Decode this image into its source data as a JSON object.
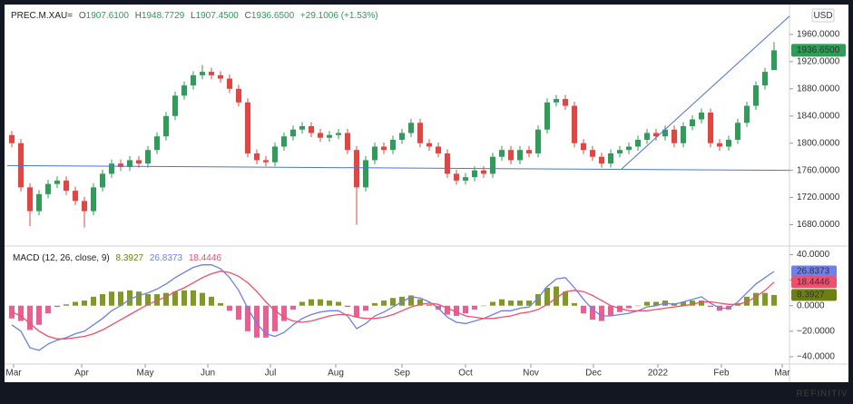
{
  "chart_data": [
    {
      "type": "candlestick",
      "symbol": "PREC.M.XAU=",
      "ohlc_legend": [
        {
          "key": "O",
          "text": "1907.6100"
        },
        {
          "key": "H",
          "text": "1948.7729"
        },
        {
          "key": "L",
          "text": "1907.4500"
        },
        {
          "key": "C",
          "text": "1936.6500"
        }
      ],
      "change": "+29.1006 (+1.53%)",
      "currency": "USD",
      "open": [
        1812,
        1800,
        1735,
        1700,
        1725,
        1740,
        1745,
        1730,
        1715,
        1700,
        1735,
        1755,
        1770,
        1765,
        1775,
        1770,
        1790,
        1810,
        1840,
        1870,
        1885,
        1900,
        1905,
        1900,
        1895,
        1880,
        1860,
        1785,
        1775,
        1772,
        1795,
        1810,
        1820,
        1825,
        1815,
        1808,
        1812,
        1815,
        1790,
        1735,
        1775,
        1795,
        1790,
        1805,
        1815,
        1830,
        1800,
        1795,
        1785,
        1755,
        1745,
        1750,
        1760,
        1755,
        1780,
        1790,
        1775,
        1790,
        1785,
        1820,
        1860,
        1865,
        1855,
        1800,
        1790,
        1780,
        1770,
        1785,
        1790,
        1795,
        1805,
        1815,
        1810,
        1820,
        1800,
        1825,
        1835,
        1845,
        1800,
        1795,
        1805,
        1830,
        1855,
        1885,
        1907.61
      ],
      "high": [
        1818,
        1806,
        1741,
        1731,
        1746,
        1751,
        1751,
        1736,
        1721,
        1741,
        1761,
        1776,
        1776,
        1781,
        1781,
        1796,
        1816,
        1846,
        1876,
        1891,
        1906,
        1915,
        1911,
        1906,
        1901,
        1886,
        1866,
        1791,
        1781,
        1801,
        1816,
        1826,
        1831,
        1831,
        1821,
        1818,
        1821,
        1821,
        1796,
        1781,
        1801,
        1801,
        1811,
        1821,
        1836,
        1836,
        1806,
        1801,
        1791,
        1761,
        1756,
        1766,
        1766,
        1786,
        1796,
        1796,
        1796,
        1796,
        1826,
        1866,
        1871,
        1871,
        1861,
        1806,
        1796,
        1786,
        1791,
        1796,
        1801,
        1811,
        1821,
        1821,
        1826,
        1826,
        1831,
        1841,
        1851,
        1851,
        1806,
        1811,
        1836,
        1861,
        1891,
        1911,
        1948.7729
      ],
      "low": [
        1794,
        1729,
        1678,
        1694,
        1719,
        1734,
        1724,
        1709,
        1676,
        1694,
        1729,
        1749,
        1759,
        1759,
        1764,
        1764,
        1784,
        1804,
        1834,
        1864,
        1879,
        1894,
        1894,
        1889,
        1874,
        1854,
        1779,
        1769,
        1766,
        1766,
        1789,
        1804,
        1814,
        1809,
        1802,
        1802,
        1806,
        1784,
        1680,
        1729,
        1769,
        1784,
        1784,
        1799,
        1809,
        1794,
        1789,
        1779,
        1749,
        1739,
        1739,
        1744,
        1749,
        1749,
        1774,
        1769,
        1769,
        1779,
        1779,
        1814,
        1854,
        1849,
        1794,
        1784,
        1774,
        1764,
        1764,
        1779,
        1784,
        1789,
        1799,
        1804,
        1804,
        1794,
        1794,
        1819,
        1829,
        1794,
        1789,
        1789,
        1799,
        1824,
        1849,
        1879,
        1907.45
      ],
      "close": [
        1800,
        1735,
        1700,
        1725,
        1740,
        1745,
        1730,
        1715,
        1700,
        1735,
        1755,
        1770,
        1765,
        1775,
        1770,
        1790,
        1810,
        1840,
        1870,
        1885,
        1900,
        1905,
        1900,
        1895,
        1880,
        1860,
        1785,
        1775,
        1772,
        1795,
        1810,
        1820,
        1825,
        1815,
        1808,
        1812,
        1815,
        1790,
        1735,
        1775,
        1795,
        1790,
        1805,
        1815,
        1830,
        1800,
        1795,
        1785,
        1755,
        1745,
        1750,
        1760,
        1755,
        1780,
        1790,
        1775,
        1790,
        1785,
        1820,
        1860,
        1865,
        1855,
        1800,
        1790,
        1780,
        1770,
        1785,
        1790,
        1795,
        1805,
        1815,
        1810,
        1820,
        1800,
        1825,
        1835,
        1845,
        1800,
        1795,
        1805,
        1830,
        1855,
        1885,
        1905,
        1936.65
      ],
      "up_color": "#2e9d57",
      "down_color": "#e8433f",
      "last_label": "1936.6500",
      "xlim": [
        -0.5,
        85.7
      ],
      "ylim": [
        1650,
        2000
      ],
      "yticks": [
        {
          "value": 1680,
          "label": "1680.0000"
        },
        {
          "value": 1720,
          "label": "1720.0000"
        },
        {
          "value": 1760,
          "label": "1760.0000"
        },
        {
          "value": 1800,
          "label": "1800.0000"
        },
        {
          "value": 1840,
          "label": "1840.0000"
        },
        {
          "value": 1880,
          "label": "1880.0000"
        },
        {
          "value": 1920,
          "label": "1920.0000"
        },
        {
          "value": 1960,
          "label": "1960.0000"
        }
      ],
      "trendline_color": "#4a72e8",
      "trendlines": [
        {
          "x": [
            -0.5,
            85.7
          ],
          "y": [
            1767,
            1760
          ]
        },
        {
          "x": [
            67.2,
            85.7
          ],
          "y": [
            1762,
            1987
          ]
        }
      ]
    },
    {
      "type": "macd",
      "title": "MACD (12, 26, close, 9)",
      "series": [
        {
          "type": "histogram",
          "color": "#6d7f10",
          "positive_color": "#7f9a22",
          "negative_color": "#ee5d8f",
          "last_label": "8.3927",
          "values": [
            -10,
            -12,
            -19,
            -15,
            -6,
            -1,
            1,
            3,
            4,
            7,
            9,
            11,
            11,
            12,
            11,
            9,
            9,
            10,
            11,
            12,
            12,
            10,
            7,
            2,
            -4,
            -11,
            -20,
            -25,
            -25,
            -20,
            -12,
            -3,
            3,
            5,
            5,
            4,
            3,
            -1,
            -9,
            -4,
            2,
            4,
            6,
            7,
            8,
            5,
            1,
            -3,
            -7,
            -8,
            -6,
            -3,
            0,
            3,
            5,
            4,
            4,
            4,
            9,
            14,
            15,
            11,
            2,
            -6,
            -11,
            -12,
            -8,
            -5,
            -2,
            0,
            3,
            3,
            4,
            2,
            3,
            4,
            4,
            -1,
            -4,
            -3,
            2,
            7,
            10,
            10,
            8.3927
          ]
        },
        {
          "type": "line",
          "color": "#6f7ff0",
          "last_label": "26.8373",
          "values": [
            -15,
            -20,
            -33,
            -35,
            -30,
            -27,
            -25,
            -22,
            -20,
            -15,
            -10,
            -4,
            0,
            5,
            8,
            10,
            13,
            17,
            22,
            26,
            30,
            32,
            32,
            29,
            22,
            12,
            -2,
            -14,
            -22,
            -24,
            -21,
            -15,
            -10,
            -7,
            -5,
            -4,
            -4,
            -8,
            -18,
            -14,
            -8,
            -5,
            -1,
            3,
            7,
            6,
            3,
            -2,
            -9,
            -13,
            -14,
            -12,
            -10,
            -7,
            -4,
            -4,
            -2,
            -1,
            6,
            15,
            21,
            22,
            14,
            5,
            -3,
            -8,
            -8,
            -7,
            -6,
            -4,
            -1,
            0,
            2,
            1,
            3,
            5,
            7,
            2,
            -2,
            -2,
            3,
            10,
            17,
            22,
            26.8373
          ]
        },
        {
          "type": "line",
          "color": "#f0506e",
          "last_label": "18.4446",
          "values": [
            -5,
            -8,
            -14,
            -20,
            -24,
            -26,
            -26,
            -25,
            -24,
            -22,
            -19,
            -15,
            -11,
            -7,
            -3,
            1,
            4,
            7,
            11,
            14,
            18,
            22,
            25,
            27,
            26,
            23,
            18,
            11,
            3,
            -4,
            -9,
            -12,
            -13,
            -12,
            -10,
            -8,
            -7,
            -7,
            -9,
            -10,
            -10,
            -9,
            -7,
            -4,
            -1,
            1,
            2,
            1,
            -2,
            -5,
            -8,
            -9,
            -10,
            -10,
            -9,
            -8,
            -6,
            -5,
            -3,
            1,
            6,
            11,
            12,
            11,
            8,
            4,
            0,
            -2,
            -4,
            -4,
            -4,
            -3,
            -2,
            -1,
            0,
            1,
            3,
            3,
            2,
            1,
            1,
            3,
            7,
            12,
            18.4446
          ]
        }
      ],
      "xlim": [
        -0.5,
        85.7
      ],
      "ylim": [
        -45,
        46
      ],
      "yticks": [
        {
          "value": -40,
          "label": "−40.0000"
        },
        {
          "value": -20,
          "label": "−20.0000"
        },
        {
          "value": 0,
          "label": "0.0000"
        },
        {
          "value": 20,
          "label": "20.0000"
        },
        {
          "value": 40,
          "label": "40.0000"
        }
      ],
      "xticks": [
        {
          "value": 0.2,
          "label": "Mar"
        },
        {
          "value": 7.7,
          "label": "Apr"
        },
        {
          "value": 14.7,
          "label": "May"
        },
        {
          "value": 21.6,
          "label": "Jun"
        },
        {
          "value": 28.5,
          "label": "Jul"
        },
        {
          "value": 35.7,
          "label": "Aug"
        },
        {
          "value": 43,
          "label": "Sep"
        },
        {
          "value": 50,
          "label": "Oct"
        },
        {
          "value": 57.2,
          "label": "Nov"
        },
        {
          "value": 64.1,
          "label": "Dec"
        },
        {
          "value": 71.2,
          "label": "2022"
        },
        {
          "value": 78.2,
          "label": "Feb"
        },
        {
          "value": 84.9,
          "label": "Mar"
        }
      ]
    }
  ],
  "footer": {
    "brand": "REFINITIV"
  }
}
